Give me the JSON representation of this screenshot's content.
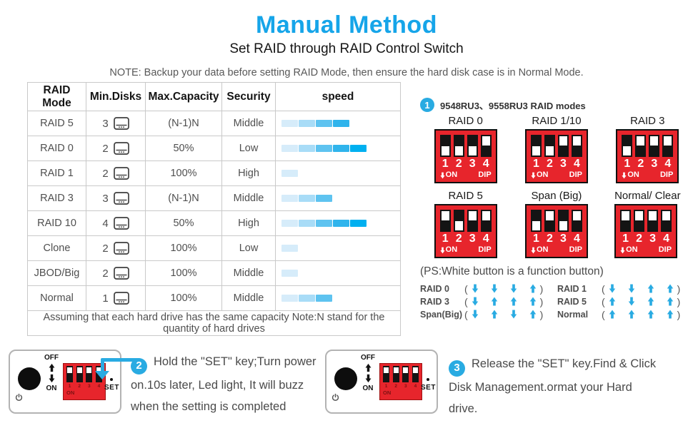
{
  "header": {
    "title": "Manual Method",
    "subtitle": "Set RAID through RAID Control Switch",
    "note": "NOTE: Backup your data before setting RAID Mode, then ensure the hard disk case is in Normal Mode."
  },
  "colors": {
    "accent_blue": "#29abe2",
    "title_blue": "#16a5e9",
    "dip_red": "#e7252c",
    "speed_levels": [
      "#d6ecfa",
      "#a8dcf7",
      "#5ec3f0",
      "#2fb4ec",
      "#00b0f0"
    ]
  },
  "table": {
    "headers": {
      "mode": "RAID Mode",
      "disks": "Min.Disks",
      "capacity": "Max.Capacity",
      "security": "Security",
      "speed": "speed"
    },
    "rows": [
      {
        "mode": "RAID 5",
        "disks": "3",
        "capacity": "(N-1)N",
        "security": "Middle",
        "speed_segments": 4
      },
      {
        "mode": "RAID 0",
        "disks": "2",
        "capacity": "50%",
        "security": "Low",
        "speed_segments": 5
      },
      {
        "mode": "RAID 1",
        "disks": "2",
        "capacity": "100%",
        "security": "High",
        "speed_segments": 1
      },
      {
        "mode": "RAID 3",
        "disks": "3",
        "capacity": "(N-1)N",
        "security": "Middle",
        "speed_segments": 3
      },
      {
        "mode": "RAID 10",
        "disks": "4",
        "capacity": "50%",
        "security": "High",
        "speed_segments": 5
      },
      {
        "mode": "Clone",
        "disks": "2",
        "capacity": "100%",
        "security": "Low",
        "speed_segments": 1
      },
      {
        "mode": "JBOD/Big",
        "disks": "2",
        "capacity": "100%",
        "security": "Middle",
        "speed_segments": 1
      },
      {
        "mode": "Normal",
        "disks": "1",
        "capacity": "100%",
        "security": "Middle",
        "speed_segments": 3
      }
    ],
    "footnote": "Assuming that each hard drive has the same capacity Note:N stand for the quantity of hard drives"
  },
  "raid_panel": {
    "step_number": "1",
    "heading": "9548RU3、9558RU3  RAID modes",
    "dip_numbers": [
      "1",
      "2",
      "3",
      "4"
    ],
    "on_label": "ON",
    "dip_label": "DIP",
    "modes": [
      {
        "label": "RAID 0",
        "positions": [
          "down",
          "down",
          "down",
          "up"
        ]
      },
      {
        "label": "RAID 1/10",
        "positions": [
          "down",
          "down",
          "up",
          "up"
        ]
      },
      {
        "label": "RAID 3",
        "positions": [
          "down",
          "up",
          "up",
          "up"
        ]
      },
      {
        "label": "RAID 5",
        "positions": [
          "up",
          "down",
          "up",
          "up"
        ]
      },
      {
        "label": "Span (Big)",
        "positions": [
          "down",
          "up",
          "down",
          "up"
        ]
      },
      {
        "label": "Normal/ Clear",
        "positions": [
          "up",
          "up",
          "up",
          "up"
        ]
      }
    ],
    "ps_note": "(PS:White button is a function button)",
    "legend_open": "(",
    "legend_close": ")",
    "legend": [
      {
        "label": "RAID 0",
        "arrows": [
          "down",
          "down",
          "down",
          "up"
        ]
      },
      {
        "label": "RAID 3",
        "arrows": [
          "down",
          "up",
          "up",
          "up"
        ]
      },
      {
        "label": "Span(Big)",
        "arrows": [
          "down",
          "up",
          "down",
          "up"
        ]
      },
      {
        "label": "RAID 1",
        "arrows": [
          "down",
          "down",
          "up",
          "up"
        ]
      },
      {
        "label": "RAID 5",
        "arrows": [
          "up",
          "down",
          "up",
          "up"
        ]
      },
      {
        "label": "Normal",
        "arrows": [
          "up",
          "up",
          "up",
          "up"
        ]
      }
    ]
  },
  "device": {
    "off_label": "OFF",
    "on_label": "ON",
    "set_label": "SET",
    "dip_numbers": [
      "1",
      "2",
      "3",
      "4"
    ],
    "dip_on_label": "ON",
    "dip_positions": [
      "up",
      "up",
      "up",
      "up"
    ]
  },
  "steps": [
    {
      "number": "2",
      "text": "Hold the \"SET\" key;Turn power on.10s later, Led light, It will buzz when the setting is completed"
    },
    {
      "number": "3",
      "text": "Release the \"SET\" key.Find & Click Disk Management.ormat your Hard drive."
    }
  ]
}
